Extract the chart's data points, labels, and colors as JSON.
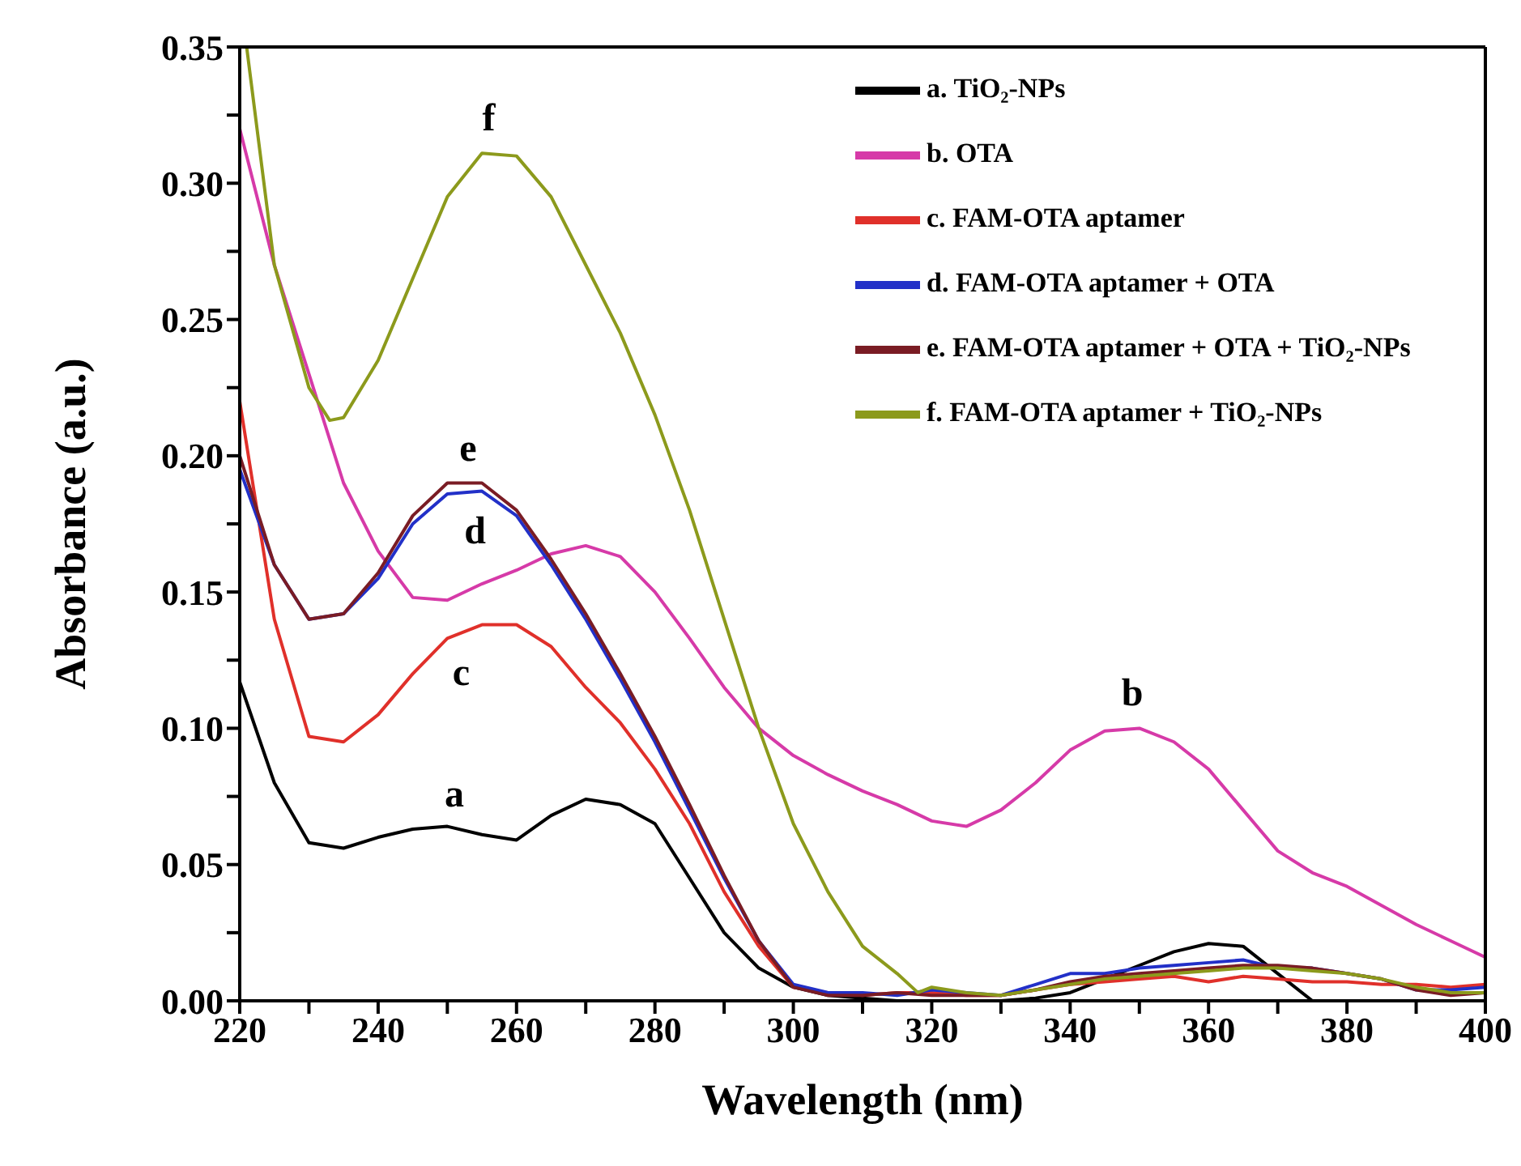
{
  "chart_data": {
    "type": "line",
    "xlabel": "Wavelength (nm)",
    "ylabel": "Absorbance (a.u.)",
    "x": [
      220,
      225,
      230,
      235,
      240,
      245,
      250,
      255,
      260,
      265,
      270,
      275,
      280,
      285,
      290,
      295,
      300,
      305,
      310,
      315,
      320,
      325,
      330,
      335,
      340,
      345,
      350,
      355,
      360,
      365,
      370,
      375,
      380,
      385,
      390,
      395,
      400
    ],
    "series": [
      {
        "name": "a. TiO₂-NPs",
        "color": "#000000",
        "values": [
          0.117,
          0.08,
          0.058,
          0.056,
          0.06,
          0.063,
          0.064,
          0.061,
          0.059,
          0.068,
          0.074,
          0.072,
          0.065,
          0.045,
          0.025,
          0.012,
          0.005,
          0.002,
          0.001,
          0.0,
          0.0,
          0.0,
          0.0,
          0.001,
          0.003,
          0.008,
          0.013,
          0.018,
          0.021,
          0.02,
          0.01,
          0.0,
          null,
          null,
          null,
          null,
          null
        ]
      },
      {
        "name": "b. OTA",
        "color": "#d63aa8",
        "values": [
          0.32,
          0.27,
          0.23,
          0.19,
          0.165,
          0.148,
          0.147,
          0.153,
          0.158,
          0.164,
          0.167,
          0.163,
          0.15,
          0.133,
          0.115,
          0.1,
          0.09,
          0.083,
          0.077,
          0.072,
          0.066,
          0.064,
          0.07,
          0.08,
          0.092,
          0.099,
          0.1,
          0.095,
          0.085,
          0.07,
          0.055,
          0.047,
          0.042,
          0.035,
          0.028,
          0.022,
          0.016
        ]
      },
      {
        "name": "c. FAM-OTA aptamer",
        "color": "#e0302a",
        "values": [
          0.22,
          0.14,
          0.097,
          0.095,
          0.105,
          0.12,
          0.133,
          0.138,
          0.138,
          0.13,
          0.115,
          0.102,
          0.085,
          0.065,
          0.04,
          0.02,
          0.005,
          0.003,
          0.002,
          0.003,
          0.003,
          0.002,
          0.002,
          0.004,
          0.006,
          0.007,
          0.008,
          0.009,
          0.007,
          0.009,
          0.008,
          0.007,
          0.007,
          0.006,
          0.006,
          0.005,
          0.006
        ]
      },
      {
        "name": "d. FAM-OTA aptamer + OTA",
        "color": "#2230c8",
        "values": [
          0.195,
          0.16,
          0.14,
          0.142,
          0.155,
          0.175,
          0.186,
          0.187,
          0.178,
          0.16,
          0.14,
          0.118,
          0.095,
          0.07,
          0.045,
          0.022,
          0.006,
          0.003,
          0.003,
          0.002,
          0.004,
          0.003,
          0.002,
          0.006,
          0.01,
          0.01,
          0.012,
          0.013,
          0.014,
          0.015,
          0.012,
          0.012,
          0.01,
          0.008,
          0.004,
          0.004,
          0.005
        ]
      },
      {
        "name": "e. FAM-OTA aptamer + OTA + TiO₂-NPs",
        "color": "#7a1c24",
        "values": [
          0.2,
          0.16,
          0.14,
          0.142,
          0.157,
          0.178,
          0.19,
          0.19,
          0.18,
          0.162,
          0.142,
          0.12,
          0.097,
          0.072,
          0.046,
          0.022,
          0.005,
          0.002,
          0.002,
          0.003,
          0.002,
          0.002,
          0.002,
          0.004,
          0.007,
          0.009,
          0.01,
          0.011,
          0.012,
          0.013,
          0.013,
          0.012,
          0.01,
          0.008,
          0.004,
          0.002,
          0.003
        ]
      },
      {
        "name": "f. FAM-OTA aptamer + TiO₂-NPs",
        "color": "#8c9a1c",
        "x": [
          221,
          225,
          230,
          233,
          235,
          240,
          245,
          250,
          255,
          260,
          265,
          270,
          275,
          280,
          285,
          290,
          295,
          300,
          305,
          310,
          315,
          318,
          320,
          325,
          330,
          335,
          340,
          345,
          350,
          355,
          360,
          365,
          370,
          375,
          380,
          385,
          390,
          395,
          400
        ],
        "values": [
          0.35,
          0.27,
          0.225,
          0.213,
          0.214,
          0.235,
          0.265,
          0.295,
          0.311,
          0.31,
          0.295,
          0.27,
          0.245,
          0.215,
          0.18,
          0.14,
          0.1,
          0.065,
          0.04,
          0.02,
          0.01,
          0.003,
          0.005,
          0.003,
          0.002,
          0.004,
          0.006,
          0.008,
          0.009,
          0.01,
          0.011,
          0.012,
          0.012,
          0.011,
          0.01,
          0.008,
          0.005,
          0.003,
          0.003
        ]
      }
    ],
    "annotations": [
      {
        "text": "f",
        "x": 256,
        "y": 0.311
      },
      {
        "text": "e",
        "x": 253,
        "y": 0.19
      },
      {
        "text": "d",
        "x": 254,
        "y": 0.187
      },
      {
        "text": "c",
        "x": 252,
        "y": 0.135
      },
      {
        "text": "a",
        "x": 251,
        "y": 0.063
      },
      {
        "text": "b",
        "x": 349,
        "y": 0.1
      }
    ],
    "xlim": [
      220,
      400
    ],
    "ylim": [
      0,
      0.35
    ],
    "xticks": [
      220,
      {
        "value": 230,
        "label": null
      },
      240,
      {
        "value": 250,
        "label": null
      },
      260,
      {
        "value": 270,
        "label": null
      },
      280,
      {
        "value": 290,
        "label": null
      },
      300,
      {
        "value": 310,
        "label": null
      },
      320,
      {
        "value": 330,
        "label": null
      },
      340,
      {
        "value": 350,
        "label": null
      },
      360,
      {
        "value": 370,
        "label": null
      },
      380,
      {
        "value": 390,
        "label": null
      },
      400
    ],
    "yticks": [
      {
        "value": 0,
        "label": "0.00"
      },
      {
        "value": 0.025,
        "label": null
      },
      {
        "value": 0.05,
        "label": "0.05"
      },
      {
        "value": 0.075,
        "label": null
      },
      {
        "value": 0.1,
        "label": "0.10"
      },
      {
        "value": 0.125,
        "label": null
      },
      {
        "value": 0.15,
        "label": "0.15"
      },
      {
        "value": 0.175,
        "label": null
      },
      {
        "value": 0.2,
        "label": "0.20"
      },
      {
        "value": 0.225,
        "label": null
      },
      {
        "value": 0.25,
        "label": "0.25"
      },
      {
        "value": 0.275,
        "label": null
      },
      {
        "value": 0.3,
        "label": "0.30"
      },
      {
        "value": 0.325,
        "label": null
      },
      {
        "value": 0.35,
        "label": "0.35"
      }
    ],
    "legend": "top right",
    "grid": false,
    "marker": "none",
    "line_style": "solid"
  }
}
